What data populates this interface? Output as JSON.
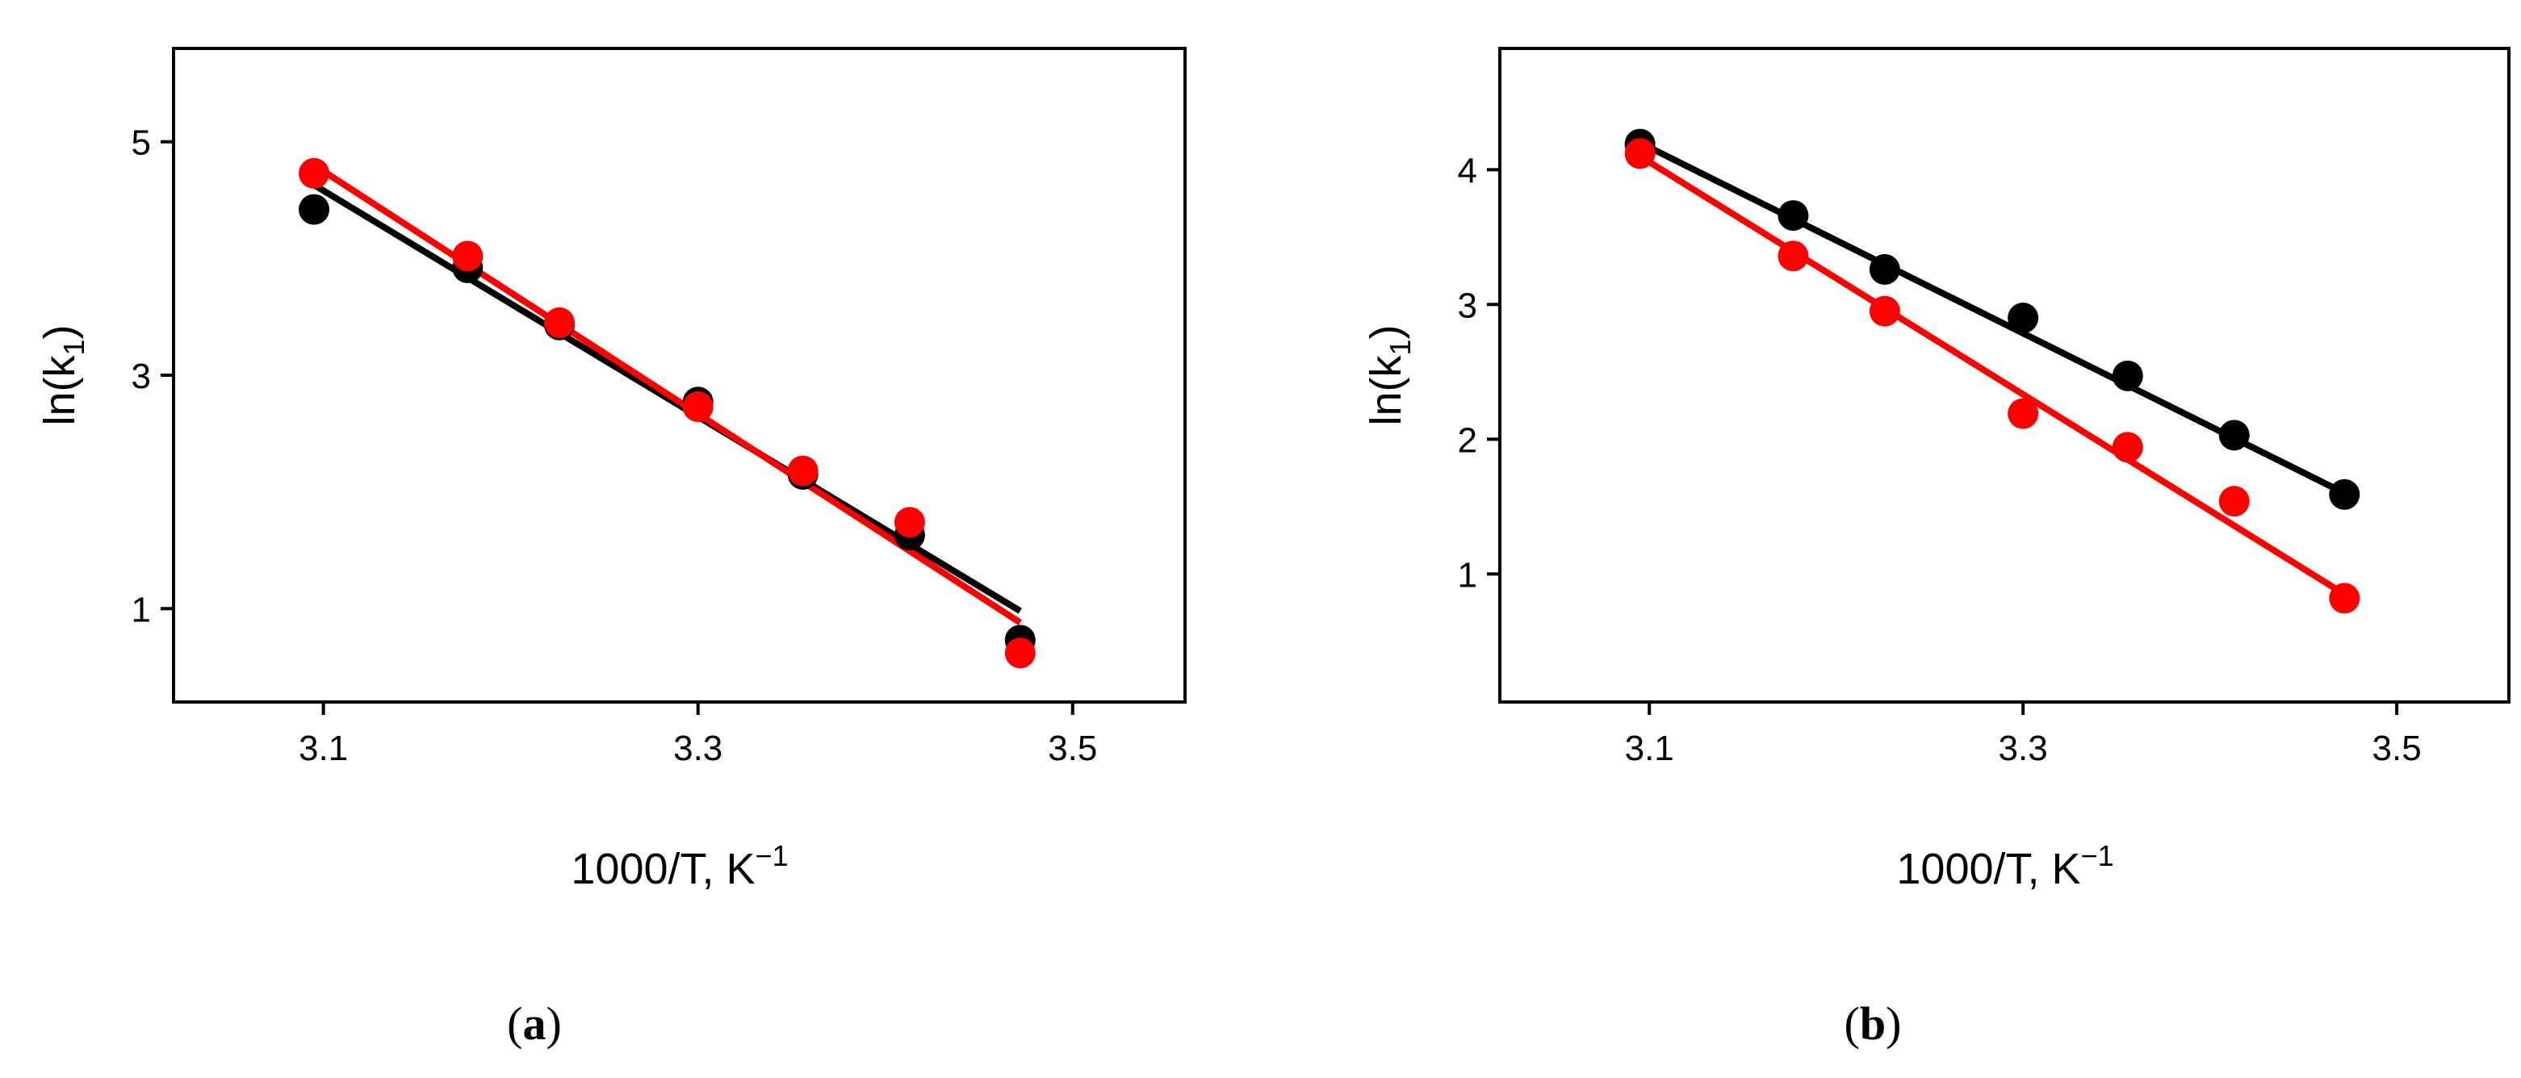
{
  "chart_data": [
    {
      "type": "scatter",
      "panel_label": {
        "open": "(",
        "letter": "a",
        "close": ")"
      },
      "xlabel": {
        "main": "1000/T, K",
        "sup": "−1"
      },
      "ylabel": {
        "main": "ln(k",
        "sub": "1",
        "close": ")"
      },
      "xlim": [
        3.02,
        3.56
      ],
      "ylim": [
        0.2,
        5.8
      ],
      "xticks": [
        3.1,
        3.3,
        3.5
      ],
      "xtick_labels": [
        "3.1",
        "3.3",
        "3.5"
      ],
      "yticks": [
        1,
        3,
        5
      ],
      "ytick_labels": [
        "1",
        "3",
        "5"
      ],
      "grid": false,
      "series": [
        {
          "color": "#000000",
          "x": [
            3.095,
            3.177,
            3.226,
            3.3,
            3.356,
            3.413,
            3.472
          ],
          "y": [
            4.42,
            3.92,
            3.43,
            2.77,
            2.15,
            1.63,
            0.73
          ],
          "fit": {
            "x": [
              3.095,
              3.472
            ],
            "y": [
              4.63,
              0.98
            ]
          }
        },
        {
          "color": "#ff0000",
          "x": [
            3.095,
            3.177,
            3.226,
            3.3,
            3.356,
            3.413,
            3.472
          ],
          "y": [
            4.73,
            4.02,
            3.45,
            2.73,
            2.18,
            1.74,
            0.62
          ],
          "fit": {
            "x": [
              3.095,
              3.472
            ],
            "y": [
              4.8,
              0.88
            ]
          }
        }
      ]
    },
    {
      "type": "scatter",
      "panel_label": {
        "open": "(",
        "letter": "b",
        "close": ")"
      },
      "xlabel": {
        "main": "1000/T, K",
        "sup": "−1"
      },
      "ylabel": {
        "main": "ln(k",
        "sub": "1",
        "close": ")"
      },
      "xlim": [
        3.02,
        3.56
      ],
      "ylim": [
        0.05,
        4.9
      ],
      "xticks": [
        3.1,
        3.3,
        3.5
      ],
      "xtick_labels": [
        "3.1",
        "3.3",
        "3.5"
      ],
      "yticks": [
        1,
        2,
        3,
        4
      ],
      "ytick_labels": [
        "1",
        "2",
        "3",
        "4"
      ],
      "grid": false,
      "series": [
        {
          "color": "#000000",
          "x": [
            3.095,
            3.177,
            3.226,
            3.3,
            3.356,
            3.413,
            3.472
          ],
          "y": [
            4.19,
            3.66,
            3.26,
            2.9,
            2.47,
            2.03,
            1.59
          ],
          "fit": {
            "x": [
              3.095,
              3.472
            ],
            "y": [
              4.2,
              1.6
            ]
          }
        },
        {
          "color": "#ff0000",
          "x": [
            3.095,
            3.177,
            3.226,
            3.3,
            3.356,
            3.413,
            3.472
          ],
          "y": [
            4.12,
            3.36,
            2.95,
            2.19,
            1.94,
            1.54,
            0.82
          ],
          "fit": {
            "x": [
              3.095,
              3.472
            ],
            "y": [
              4.1,
              0.85
            ]
          }
        }
      ]
    }
  ]
}
